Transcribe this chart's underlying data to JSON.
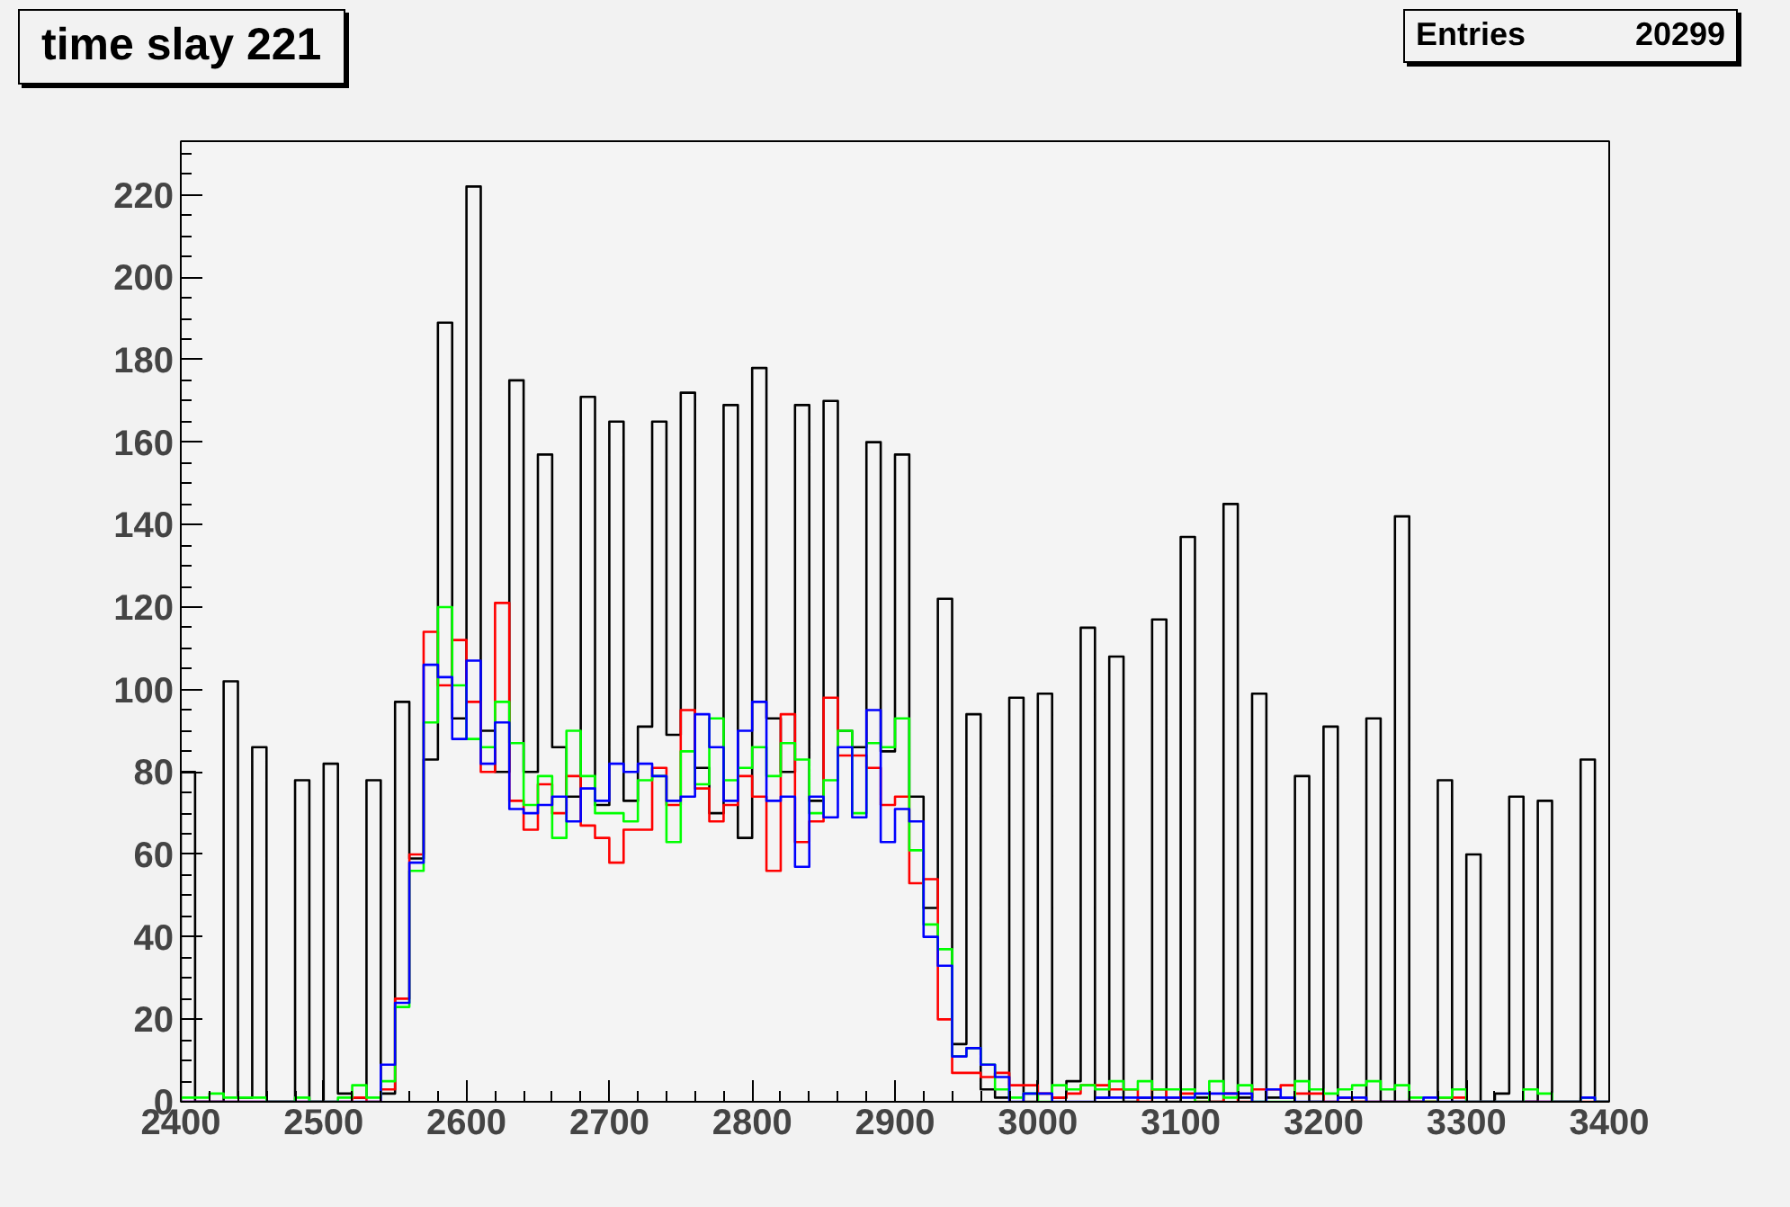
{
  "chart_data": {
    "type": "histogram",
    "title": "time slay 221",
    "annotations": [
      "Entries",
      "20299"
    ],
    "bins": [
      2400,
      2410,
      2420,
      2430,
      2440,
      2450,
      2460,
      2470,
      2480,
      2490,
      2500,
      2510,
      2520,
      2530,
      2540,
      2550,
      2560,
      2570,
      2580,
      2590,
      2600,
      2610,
      2620,
      2630,
      2640,
      2650,
      2660,
      2670,
      2680,
      2690,
      2700,
      2710,
      2720,
      2730,
      2740,
      2750,
      2760,
      2770,
      2780,
      2790,
      2800,
      2810,
      2820,
      2830,
      2840,
      2850,
      2860,
      2870,
      2880,
      2890,
      2900,
      2910,
      2920,
      2930,
      2940,
      2950,
      2960,
      2970,
      2980,
      2990,
      3000,
      3010,
      3020,
      3030,
      3040,
      3050,
      3060,
      3070,
      3080,
      3090,
      3100,
      3110,
      3120,
      3130,
      3140,
      3150,
      3160,
      3170,
      3180,
      3190,
      3200,
      3210,
      3220,
      3230,
      3240,
      3250,
      3260,
      3270,
      3280,
      3290,
      3300,
      3310,
      3320,
      3330,
      3340,
      3350,
      3360,
      3370,
      3380,
      3390,
      3400
    ],
    "series": [
      {
        "color": "#000000",
        "values": [
          80,
          0,
          0,
          102,
          1,
          86,
          0,
          0,
          78,
          0,
          82,
          2,
          1,
          78,
          2,
          97,
          59,
          83,
          189,
          93,
          222,
          90,
          80,
          175,
          80,
          157,
          86,
          74,
          171,
          72,
          165,
          73,
          91,
          165,
          89,
          172,
          81,
          70,
          169,
          64,
          178,
          93,
          80,
          169,
          73,
          170,
          90,
          86,
          160,
          85,
          157,
          74,
          47,
          122,
          14,
          94,
          3,
          1,
          98,
          0,
          99,
          1,
          5,
          115,
          1,
          108,
          0,
          1,
          117,
          0,
          137,
          1,
          0,
          145,
          1,
          99,
          1,
          1,
          79,
          0,
          91,
          1,
          0,
          93,
          0,
          142,
          0,
          0,
          78,
          0,
          60,
          0,
          2,
          74,
          0,
          73,
          0,
          0,
          83,
          0
        ]
      },
      {
        "color": "#ff0000",
        "values": [
          0,
          0,
          0,
          0,
          0,
          0,
          0,
          0,
          0,
          0,
          0,
          0,
          1,
          0,
          3,
          25,
          60,
          114,
          101,
          112,
          97,
          80,
          121,
          73,
          66,
          77,
          70,
          79,
          67,
          64,
          58,
          66,
          66,
          81,
          72,
          95,
          76,
          68,
          72,
          79,
          74,
          56,
          94,
          63,
          68,
          98,
          84,
          84,
          81,
          72,
          74,
          53,
          54,
          20,
          7,
          7,
          6,
          7,
          4,
          4,
          2,
          1,
          2,
          4,
          4,
          3,
          3,
          0,
          3,
          1,
          2,
          0,
          0,
          2,
          0,
          3,
          3,
          4,
          2,
          2,
          0,
          1,
          0,
          0,
          0,
          0,
          0,
          0,
          1,
          1,
          0,
          0,
          0,
          0,
          0,
          0,
          0,
          0,
          0,
          0
        ]
      },
      {
        "color": "#00ff00",
        "values": [
          1,
          1,
          2,
          1,
          1,
          1,
          0,
          0,
          1,
          0,
          0,
          1,
          4,
          1,
          5,
          23,
          56,
          92,
          120,
          101,
          88,
          86,
          97,
          87,
          72,
          79,
          64,
          90,
          79,
          70,
          70,
          68,
          78,
          79,
          63,
          85,
          77,
          93,
          78,
          81,
          86,
          79,
          87,
          83,
          70,
          78,
          90,
          70,
          87,
          86,
          93,
          61,
          43,
          37,
          11,
          13,
          9,
          3,
          1,
          2,
          0,
          4,
          3,
          4,
          3,
          5,
          3,
          5,
          3,
          3,
          3,
          0,
          5,
          1,
          4,
          0,
          0,
          0,
          5,
          3,
          2,
          3,
          4,
          5,
          3,
          4,
          1,
          0,
          1,
          3,
          0,
          0,
          0,
          0,
          3,
          2,
          0,
          0,
          1,
          0
        ]
      },
      {
        "color": "#0000ff",
        "values": [
          0,
          0,
          0,
          0,
          0,
          0,
          0,
          0,
          0,
          0,
          0,
          0,
          0,
          0,
          9,
          24,
          58,
          106,
          103,
          88,
          107,
          82,
          92,
          71,
          70,
          72,
          74,
          68,
          76,
          73,
          82,
          80,
          82,
          79,
          73,
          74,
          94,
          86,
          73,
          90,
          97,
          73,
          74,
          57,
          74,
          69,
          86,
          69,
          95,
          63,
          71,
          68,
          40,
          33,
          11,
          13,
          9,
          6,
          0,
          2,
          2,
          0,
          0,
          0,
          1,
          1,
          1,
          1,
          1,
          1,
          1,
          2,
          2,
          2,
          2,
          0,
          3,
          1,
          0,
          0,
          0,
          1,
          1,
          0,
          0,
          0,
          0,
          1,
          0,
          0,
          0,
          0,
          0,
          0,
          0,
          0,
          0,
          0,
          1,
          0
        ]
      }
    ],
    "xlim": [
      2400,
      3400
    ],
    "ylim": [
      0,
      233
    ],
    "xticks": [
      2400,
      2500,
      2600,
      2700,
      2800,
      2900,
      3000,
      3100,
      3200,
      3300,
      3400
    ],
    "yticks": [
      0,
      20,
      40,
      60,
      80,
      100,
      120,
      140,
      160,
      180,
      200,
      220
    ]
  }
}
